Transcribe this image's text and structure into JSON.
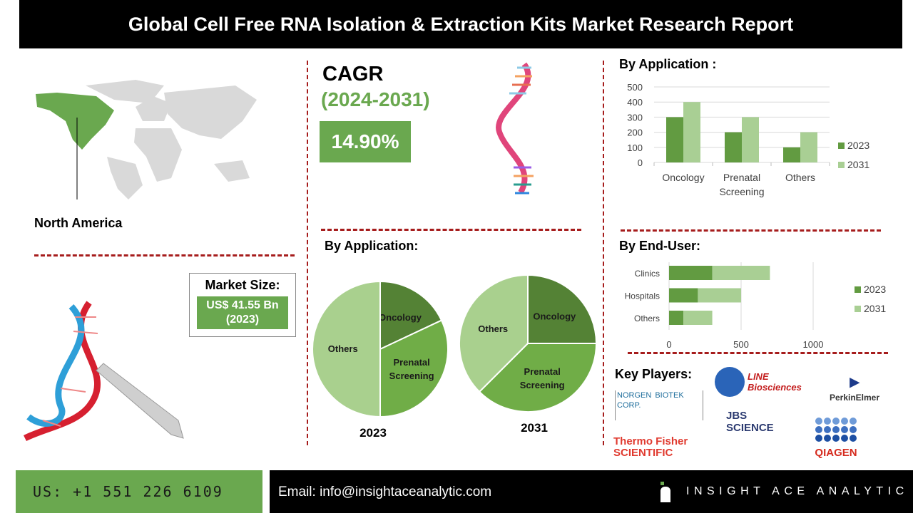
{
  "header": {
    "title": "Global Cell Free RNA Isolation & Extraction Kits Market Research Report"
  },
  "region": {
    "label": "North America",
    "highlight_color": "#6aa84f"
  },
  "market_size": {
    "label": "Market Size:",
    "value": "US$ 41.55 Bn",
    "year": "(2023)"
  },
  "cagr": {
    "label": "CAGR",
    "period": "(2024-2031)",
    "value": "14.90%"
  },
  "pie_section": {
    "title": "By Application:"
  },
  "bar_section": {
    "title": "By Application :"
  },
  "enduser_section": {
    "title": "By End-User:"
  },
  "key_players": {
    "title": "Key Players:",
    "logos": [
      "NORGEN BIOTEK CORP.",
      "LINE Biosciences",
      "PerkinElmer",
      "JBS SCIENCE",
      "Thermo Fisher SCIENTIFIC",
      "QIAGEN"
    ]
  },
  "footer": {
    "phone": "US: +1 551 226 6109",
    "email": "Email: info@insightaceanalytic.com",
    "brand": "INSIGHT ACE ANALYTIC"
  },
  "colors": {
    "dark_green": "#629b41",
    "light_green": "#a9cf94",
    "pie_oncology": "#548235",
    "pie_prenatal": "#70ad47",
    "pie_others": "#a9d08e",
    "divider_red": "#a61c1c"
  },
  "chart_data": [
    {
      "type": "pie",
      "title": "By Application:",
      "year_label": "2023",
      "categories": [
        "Oncology",
        "Prenatal Screening",
        "Others"
      ],
      "values": [
        18,
        32,
        50
      ]
    },
    {
      "type": "pie",
      "year_label": "2031",
      "categories": [
        "Oncology",
        "Prenatal Screening",
        "Others"
      ],
      "values": [
        25,
        37.5,
        37.5
      ]
    },
    {
      "type": "bar",
      "title": "By Application :",
      "categories": [
        "Oncology",
        "Prenatal Screening",
        "Others"
      ],
      "series": [
        {
          "name": "2023",
          "values": [
            300,
            200,
            100
          ]
        },
        {
          "name": "2031",
          "values": [
            400,
            300,
            200
          ]
        }
      ],
      "ylim": [
        0,
        500
      ],
      "yticks": [
        0,
        100,
        200,
        300,
        400,
        500
      ],
      "grid": true,
      "legend": "right"
    },
    {
      "type": "bar",
      "orientation": "horizontal",
      "stacked": true,
      "title": "By End-User:",
      "categories": [
        "Clinics",
        "Hospitals",
        "Others"
      ],
      "series": [
        {
          "name": "2023",
          "values": [
            300,
            200,
            100
          ]
        },
        {
          "name": "2031",
          "values": [
            400,
            300,
            200
          ]
        }
      ],
      "xlim": [
        0,
        1000
      ],
      "xticks": [
        0,
        500,
        1000
      ],
      "grid": true,
      "legend": "right"
    }
  ]
}
